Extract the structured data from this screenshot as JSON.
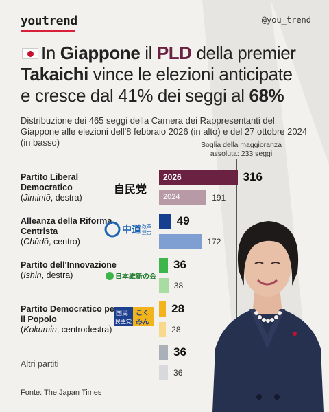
{
  "header": {
    "brand": "youtrend",
    "handle": "@you_trend"
  },
  "headline": {
    "part1": "In ",
    "bold1": "Giappone",
    "part2": " il ",
    "pld": "PLD",
    "part3": " della premier",
    "bold2": "Takaichi",
    "part4": " vince le elezioni anticipate",
    "part5": "e cresce dal 41% dei seggi al ",
    "bold3": "68%"
  },
  "subtitle": "Distribuzione dei 465 seggi della Camera dei Rappresentanti del Giappone alle elezioni dell'8 febbraio 2026 (in alto) e del 27 ottobre 2024 (in basso)",
  "majority": {
    "label_line1": "Soglia della maggioranza",
    "label_line2": "assoluta: 233 seggi"
  },
  "source": "Fonte: The Japan Times",
  "colors": {
    "ldp_2026": "#6b2142",
    "ldp_2024": "#b89aa6",
    "cdp_2026": "#173f8f",
    "cdp_2024": "#7f9ed1",
    "ishin_2026": "#3db54a",
    "ishin_2024": "#a9dca3",
    "dpfp_2026": "#f3b41b",
    "dpfp_2024": "#f8d88a",
    "other_2026": "#a9b0b8",
    "other_2024": "#d7d9dc"
  },
  "chart_data": {
    "type": "bar",
    "orientation": "horizontal",
    "categories": [
      "Partito Liberal Democratico",
      "Alleanza della Riforma Centrista",
      "Partito dell'Innovazione",
      "Partito Democratico per il Popolo",
      "Altri partiti"
    ],
    "category_notes": [
      {
        "italic": "Jimintō",
        "rest": ", destra)"
      },
      {
        "italic": "Chūdō",
        "rest": ", centro)"
      },
      {
        "italic": "Ishin",
        "rest": ", destra)"
      },
      {
        "italic": "Kokumin",
        "rest": ", centrodestra)"
      },
      {
        "italic": "",
        "rest": ""
      }
    ],
    "series": [
      {
        "name": "2026",
        "values": [
          316,
          49,
          36,
          28,
          36
        ]
      },
      {
        "name": "2024",
        "values": [
          191,
          172,
          38,
          28,
          36
        ]
      }
    ],
    "total_seats": 465,
    "majority_threshold": 233
  },
  "party_logos": {
    "ldp": "自民党",
    "cdp_a": "中道",
    "cdp_b": "改革",
    "cdp_c": "連合",
    "ishin": "日本維新の会",
    "dpfp_a": "国民",
    "dpfp_b": "民主党",
    "dpfp_c": "こく",
    "dpfp_d": "みん"
  }
}
